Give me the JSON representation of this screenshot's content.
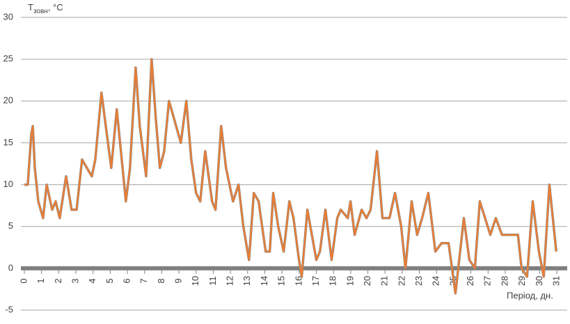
{
  "chart_data": {
    "type": "line",
    "y_label": {
      "main": "T",
      "sub": "зовн",
      "unit": ", °С"
    },
    "x_label": "Період, дн.",
    "xlim": [
      0,
      31
    ],
    "xticks": [
      0,
      1,
      2,
      3,
      4,
      5,
      6,
      7,
      8,
      9,
      10,
      11,
      12,
      13,
      14,
      15,
      16,
      17,
      18,
      19,
      20,
      21,
      22,
      23,
      24,
      25,
      26,
      27,
      28,
      29,
      30,
      31
    ],
    "ylim": [
      -5,
      30
    ],
    "yticks": [
      -5,
      0,
      5,
      10,
      15,
      20,
      25,
      30
    ],
    "grid": true,
    "series": [
      {
        "color": "#ed7d31",
        "x": [
          0,
          0.2,
          0.4,
          0.49,
          0.61,
          0.81,
          1.09,
          1.3,
          1.62,
          1.82,
          2.06,
          2.43,
          2.75,
          3.04,
          3.36,
          3.64,
          3.93,
          4.13,
          4.49,
          4.74,
          5.06,
          5.38,
          5.67,
          5.91,
          6.15,
          6.48,
          6.72,
          7.09,
          7.41,
          7.65,
          7.89,
          8.14,
          8.42,
          8.7,
          9.11,
          9.43,
          9.72,
          10,
          10.24,
          10.53,
          10.93,
          11.13,
          11.46,
          11.74,
          12.15,
          12.47,
          12.75,
          13.08,
          13.36,
          13.64,
          14.05,
          14.29,
          14.49,
          14.78,
          15.1,
          15.43,
          15.67,
          15.99,
          16.15,
          16.48,
          17,
          17.21,
          17.53,
          17.89,
          18.22,
          18.42,
          18.83,
          18.99,
          19.23,
          19.64,
          19.92,
          20.16,
          20.53,
          20.85,
          21.26,
          21.58,
          21.94,
          22.19,
          22.55,
          22.87,
          23.16,
          23.52,
          23.93,
          24.29,
          24.7,
          25.1,
          25.59,
          25.91,
          26.23,
          26.52,
          27.13,
          27.45,
          27.81,
          28.74,
          28.95,
          29.27,
          29.6,
          29.96,
          30.24,
          30.57,
          30.97
        ],
        "values": [
          10,
          10,
          16,
          17,
          12,
          8,
          6,
          10,
          7,
          8,
          6,
          11,
          7,
          7,
          13,
          12,
          11,
          13,
          21,
          17,
          12,
          19,
          13,
          8,
          12,
          24,
          17,
          11,
          25,
          18,
          12,
          14,
          20,
          18,
          15,
          20,
          13,
          9,
          8,
          14,
          8,
          7,
          17,
          12,
          8,
          10,
          5,
          1,
          9,
          8,
          2,
          2,
          9,
          5,
          2,
          8,
          6,
          1,
          -1,
          7,
          1,
          2,
          7,
          1,
          6,
          7,
          6,
          8,
          4,
          7,
          6,
          7,
          14,
          6,
          6,
          9,
          5,
          0,
          8,
          4,
          6,
          9,
          2,
          3,
          3,
          -3,
          6,
          1,
          0,
          8,
          4,
          6,
          4,
          4,
          0,
          -1,
          8,
          2,
          -1,
          10,
          2
        ]
      }
    ]
  }
}
